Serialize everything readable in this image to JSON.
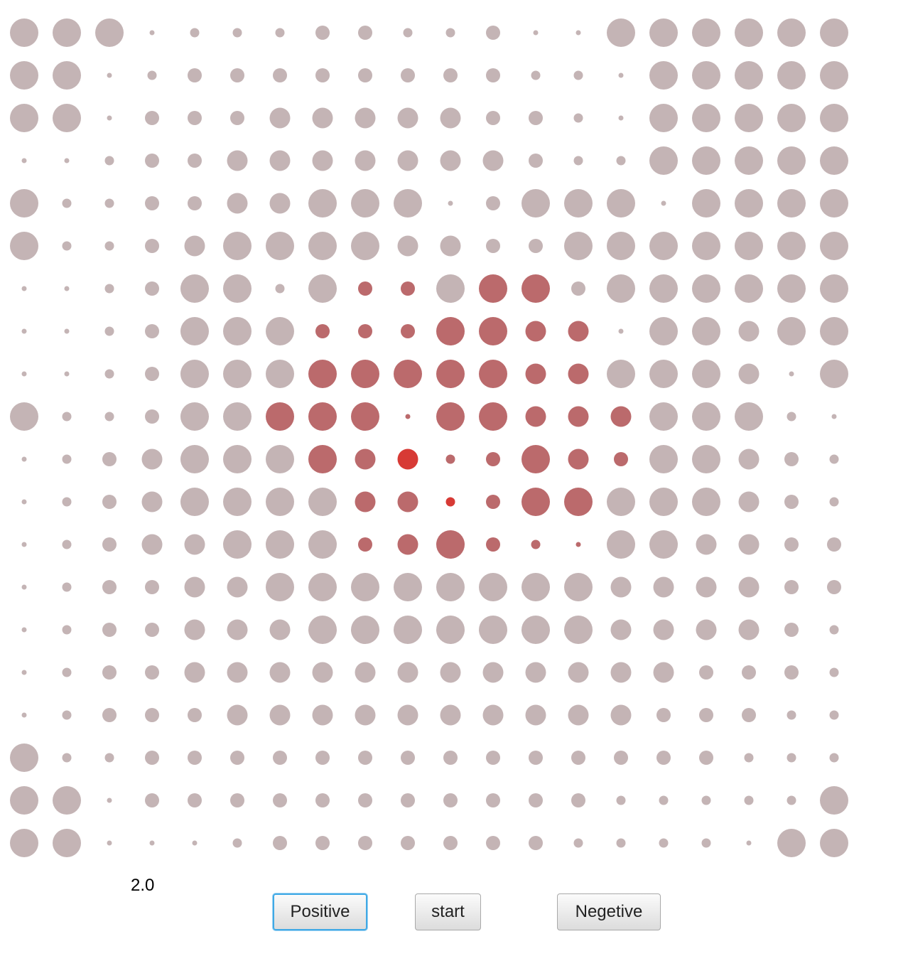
{
  "value_label": "2.0",
  "buttons": {
    "positive": "Positive",
    "start": "start",
    "negative": "Negetive"
  },
  "colors": {
    "inactive_dot": "#c4b4b5",
    "active_dot_deep": "#d73a35",
    "active_dot_muted": "#bb6a6c",
    "focus_ring": "#3fa9e5"
  },
  "dot_grid": {
    "rows": 20,
    "columns": 20,
    "legend": "r = radius level 0-4 (0 tiny, 4 largest); c = color level 0 grey/mauve to 3 saturated red",
    "r": [
      [
        4,
        4,
        4,
        0,
        1,
        1,
        1,
        2,
        2,
        1,
        1,
        2,
        0,
        0,
        4,
        4,
        4,
        4,
        4,
        4
      ],
      [
        4,
        4,
        0,
        1,
        2,
        2,
        2,
        2,
        2,
        2,
        2,
        2,
        1,
        1,
        0,
        4,
        4,
        4,
        4,
        4
      ],
      [
        4,
        4,
        0,
        2,
        2,
        2,
        3,
        3,
        3,
        3,
        3,
        2,
        2,
        1,
        0,
        4,
        4,
        4,
        4,
        4
      ],
      [
        0,
        0,
        1,
        2,
        2,
        3,
        3,
        3,
        3,
        3,
        3,
        3,
        2,
        1,
        1,
        4,
        4,
        4,
        4,
        4
      ],
      [
        4,
        1,
        1,
        2,
        2,
        3,
        3,
        4,
        4,
        4,
        0,
        2,
        4,
        4,
        4,
        0,
        4,
        4,
        4,
        4
      ],
      [
        4,
        1,
        1,
        2,
        3,
        4,
        4,
        4,
        4,
        3,
        3,
        2,
        2,
        4,
        4,
        4,
        4,
        4,
        4,
        4
      ],
      [
        0,
        0,
        1,
        2,
        4,
        4,
        1,
        4,
        2,
        2,
        4,
        4,
        4,
        2,
        4,
        4,
        4,
        4,
        4,
        4
      ],
      [
        0,
        0,
        1,
        2,
        4,
        4,
        4,
        2,
        2,
        2,
        4,
        4,
        3,
        3,
        0,
        4,
        4,
        3,
        4,
        4
      ],
      [
        0,
        0,
        1,
        2,
        4,
        4,
        4,
        4,
        4,
        4,
        4,
        4,
        3,
        3,
        4,
        4,
        4,
        3,
        0,
        4
      ],
      [
        4,
        1,
        1,
        2,
        4,
        4,
        4,
        4,
        4,
        0,
        4,
        4,
        3,
        3,
        3,
        4,
        4,
        4,
        1,
        0
      ],
      [
        0,
        1,
        2,
        3,
        4,
        4,
        4,
        4,
        3,
        3,
        1,
        2,
        4,
        3,
        2,
        4,
        4,
        3,
        2,
        1
      ],
      [
        0,
        1,
        2,
        3,
        4,
        4,
        4,
        4,
        3,
        3,
        1,
        2,
        4,
        4,
        4,
        4,
        4,
        3,
        2,
        1
      ],
      [
        0,
        1,
        2,
        3,
        3,
        4,
        4,
        4,
        2,
        3,
        4,
        2,
        1,
        0,
        4,
        4,
        3,
        3,
        2,
        2
      ],
      [
        0,
        1,
        2,
        2,
        3,
        3,
        4,
        4,
        4,
        4,
        4,
        4,
        4,
        4,
        3,
        3,
        3,
        3,
        2,
        2
      ],
      [
        0,
        1,
        2,
        2,
        3,
        3,
        3,
        4,
        4,
        4,
        4,
        4,
        4,
        4,
        3,
        3,
        3,
        3,
        2,
        1
      ],
      [
        0,
        1,
        2,
        2,
        3,
        3,
        3,
        3,
        3,
        3,
        3,
        3,
        3,
        3,
        3,
        3,
        2,
        2,
        2,
        1
      ],
      [
        0,
        1,
        2,
        2,
        2,
        3,
        3,
        3,
        3,
        3,
        3,
        3,
        3,
        3,
        3,
        2,
        2,
        2,
        1,
        1
      ],
      [
        4,
        1,
        1,
        2,
        2,
        2,
        2,
        2,
        2,
        2,
        2,
        2,
        2,
        2,
        2,
        2,
        2,
        1,
        1,
        1
      ],
      [
        4,
        4,
        0,
        2,
        2,
        2,
        2,
        2,
        2,
        2,
        2,
        2,
        2,
        2,
        1,
        1,
        1,
        1,
        1,
        4
      ],
      [
        4,
        4,
        0,
        0,
        0,
        1,
        2,
        2,
        2,
        2,
        2,
        2,
        2,
        1,
        1,
        1,
        1,
        0,
        4,
        4
      ]
    ],
    "c": [
      [
        0,
        0,
        0,
        0,
        0,
        0,
        0,
        0,
        0,
        0,
        0,
        0,
        0,
        0,
        0,
        0,
        0,
        0,
        0,
        0
      ],
      [
        0,
        0,
        0,
        0,
        0,
        0,
        0,
        0,
        0,
        0,
        0,
        0,
        0,
        0,
        0,
        0,
        0,
        0,
        0,
        0
      ],
      [
        0,
        0,
        0,
        0,
        0,
        0,
        0,
        0,
        0,
        0,
        0,
        0,
        0,
        0,
        0,
        0,
        0,
        0,
        0,
        0
      ],
      [
        0,
        0,
        0,
        0,
        0,
        0,
        0,
        0,
        0,
        0,
        0,
        0,
        0,
        0,
        0,
        0,
        0,
        0,
        0,
        0
      ],
      [
        0,
        0,
        0,
        0,
        0,
        0,
        0,
        0,
        0,
        0,
        0,
        0,
        0,
        0,
        0,
        0,
        0,
        0,
        0,
        0
      ],
      [
        0,
        0,
        0,
        0,
        0,
        0,
        0,
        0,
        0,
        0,
        0,
        0,
        0,
        0,
        0,
        0,
        0,
        0,
        0,
        0
      ],
      [
        0,
        0,
        0,
        0,
        0,
        0,
        0,
        0,
        2,
        2,
        0,
        2,
        2,
        0,
        0,
        0,
        0,
        0,
        0,
        0
      ],
      [
        0,
        0,
        0,
        0,
        0,
        0,
        0,
        2,
        2,
        2,
        2,
        2,
        2,
        2,
        0,
        0,
        0,
        0,
        0,
        0
      ],
      [
        0,
        0,
        0,
        0,
        0,
        0,
        0,
        2,
        2,
        2,
        2,
        2,
        2,
        2,
        0,
        0,
        0,
        0,
        0,
        0
      ],
      [
        0,
        0,
        0,
        0,
        0,
        0,
        2,
        2,
        2,
        2,
        2,
        2,
        2,
        2,
        2,
        0,
        0,
        0,
        0,
        0
      ],
      [
        0,
        0,
        0,
        0,
        0,
        0,
        0,
        2,
        2,
        3,
        2,
        2,
        2,
        2,
        2,
        0,
        0,
        0,
        0,
        0
      ],
      [
        0,
        0,
        0,
        0,
        0,
        0,
        0,
        0,
        2,
        2,
        3,
        2,
        2,
        2,
        0,
        0,
        0,
        0,
        0,
        0
      ],
      [
        0,
        0,
        0,
        0,
        0,
        0,
        0,
        0,
        2,
        2,
        2,
        2,
        2,
        2,
        0,
        0,
        0,
        0,
        0,
        0
      ],
      [
        0,
        0,
        0,
        0,
        0,
        0,
        0,
        0,
        0,
        0,
        0,
        0,
        0,
        0,
        0,
        0,
        0,
        0,
        0,
        0
      ],
      [
        0,
        0,
        0,
        0,
        0,
        0,
        0,
        0,
        0,
        0,
        0,
        0,
        0,
        0,
        0,
        0,
        0,
        0,
        0,
        0
      ],
      [
        0,
        0,
        0,
        0,
        0,
        0,
        0,
        0,
        0,
        0,
        0,
        0,
        0,
        0,
        0,
        0,
        0,
        0,
        0,
        0
      ],
      [
        0,
        0,
        0,
        0,
        0,
        0,
        0,
        0,
        0,
        0,
        0,
        0,
        0,
        0,
        0,
        0,
        0,
        0,
        0,
        0
      ],
      [
        0,
        0,
        0,
        0,
        0,
        0,
        0,
        0,
        0,
        0,
        0,
        0,
        0,
        0,
        0,
        0,
        0,
        0,
        0,
        0
      ],
      [
        0,
        0,
        0,
        0,
        0,
        0,
        0,
        0,
        0,
        0,
        0,
        0,
        0,
        0,
        0,
        0,
        0,
        0,
        0,
        0
      ],
      [
        0,
        0,
        0,
        0,
        0,
        0,
        0,
        0,
        0,
        0,
        0,
        0,
        0,
        0,
        0,
        0,
        0,
        0,
        0,
        0
      ]
    ]
  }
}
